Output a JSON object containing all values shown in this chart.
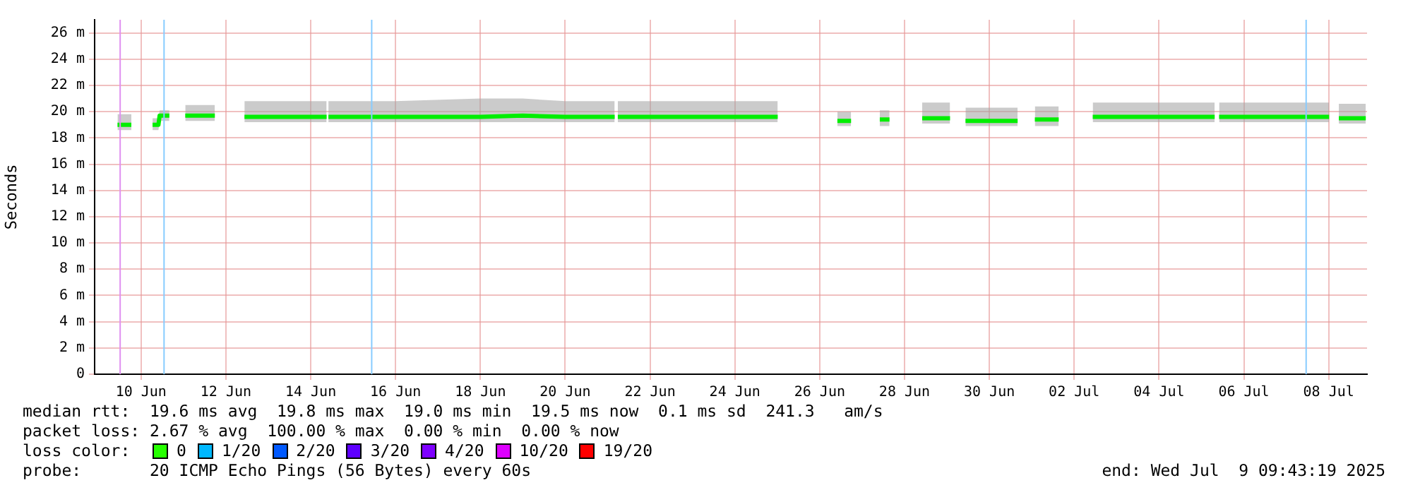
{
  "chart_data": {
    "type": "line",
    "ylabel": "Seconds",
    "xlim": [
      "2025-06-09T09:43",
      "2025-07-09T09:43"
    ],
    "xticks": [
      {
        "value": "2025-06-10T12:00",
        "label": "10 Jun"
      },
      {
        "value": "2025-06-12T12:00",
        "label": "12 Jun"
      },
      {
        "value": "2025-06-14T12:00",
        "label": "14 Jun"
      },
      {
        "value": "2025-06-16T12:00",
        "label": "16 Jun"
      },
      {
        "value": "2025-06-18T12:00",
        "label": "18 Jun"
      },
      {
        "value": "2025-06-20T12:00",
        "label": "20 Jun"
      },
      {
        "value": "2025-06-22T12:00",
        "label": "22 Jun"
      },
      {
        "value": "2025-06-24T12:00",
        "label": "24 Jun"
      },
      {
        "value": "2025-06-26T12:00",
        "label": "26 Jun"
      },
      {
        "value": "2025-06-28T12:00",
        "label": "28 Jun"
      },
      {
        "value": "2025-06-30T12:00",
        "label": "30 Jun"
      },
      {
        "value": "2025-07-02T12:00",
        "label": "02 Jul"
      },
      {
        "value": "2025-07-04T12:00",
        "label": "04 Jul"
      },
      {
        "value": "2025-07-06T12:00",
        "label": "06 Jul"
      },
      {
        "value": "2025-07-08T12:00",
        "label": "08 Jul"
      }
    ],
    "ylim": [
      0,
      27
    ],
    "yticks": [
      0,
      {
        "value": 2,
        "label": "2 m"
      },
      {
        "value": 4,
        "label": "4 m"
      },
      {
        "value": 6,
        "label": "6 m"
      },
      {
        "value": 8,
        "label": "8 m"
      },
      {
        "value": 10,
        "label": "10 m"
      },
      {
        "value": 12,
        "label": "12 m"
      },
      {
        "value": 14,
        "label": "14 m"
      },
      {
        "value": 16,
        "label": "16 m"
      },
      {
        "value": 18,
        "label": "18 m"
      },
      {
        "value": 20,
        "label": "20 m"
      },
      {
        "value": 22,
        "label": "22 m"
      },
      {
        "value": 24,
        "label": "24 m"
      },
      {
        "value": 26,
        "label": "26 m"
      }
    ],
    "grid": true,
    "legend": false,
    "marker": "none",
    "line_style": "solid",
    "series": [
      {
        "color": "#00ee00",
        "x": [
          "2025-06-09T22:40",
          "2025-06-10T06:30",
          "2025-06-10T12:00",
          "2025-06-10T18:30",
          "2025-06-10T21:50",
          "2025-06-10T22:30",
          "2025-06-11T04:00",
          "2025-06-11T08:00",
          "2025-06-11T13:00",
          "2025-06-12T05:45",
          "2025-06-12T14:00",
          "2025-06-12T22:30",
          "2025-06-13T22:00",
          "2025-06-14T21:00",
          "2025-06-14T21:30",
          "2025-06-14T22:00",
          "2025-06-16T12:00",
          "2025-06-18T12:00",
          "2025-06-19T12:00",
          "2025-06-20T12:00",
          "2025-06-21T16:00",
          "2025-06-21T17:00",
          "2025-06-21T17:45",
          "2025-06-22T20:00",
          "2025-06-23T22:00",
          "2025-06-24T12:00",
          "2025-06-25T12:15",
          "2025-06-26T00:00",
          "2025-06-26T22:00",
          "2025-06-27T05:45",
          "2025-06-27T12:00",
          "2025-06-27T22:00",
          "2025-06-28T03:30",
          "2025-06-28T12:00",
          "2025-06-28T22:00",
          "2025-06-29T13:45",
          "2025-06-29T18:00",
          "2025-06-29T22:30",
          "2025-06-30T12:00",
          "2025-07-01T04:00",
          "2025-07-01T08:00",
          "2025-07-01T13:45",
          "2025-07-02T03:15",
          "2025-07-02T12:00",
          "2025-07-02T22:30",
          "2025-07-04T00:00",
          "2025-07-05T19:30",
          "2025-07-05T20:30",
          "2025-07-05T22:00",
          "2025-07-07T00:00",
          "2025-07-08T12:15",
          "2025-07-08T15:00",
          "2025-07-08T17:45",
          "2025-07-09T09:00"
        ],
        "values": [
          19.0,
          19.0,
          null,
          19.0,
          19.0,
          19.7,
          19.7,
          null,
          19.7,
          19.7,
          null,
          19.6,
          19.6,
          19.6,
          null,
          19.6,
          19.6,
          19.6,
          19.7,
          19.6,
          19.6,
          null,
          19.6,
          19.6,
          19.6,
          19.6,
          19.6,
          null,
          19.3,
          19.3,
          null,
          19.4,
          19.4,
          null,
          19.5,
          19.5,
          null,
          19.3,
          19.3,
          19.3,
          null,
          19.4,
          19.4,
          null,
          19.6,
          19.6,
          19.6,
          null,
          19.6,
          19.6,
          19.6,
          null,
          19.5,
          19.5
        ],
        "lower": [
          18.6,
          18.6,
          null,
          18.6,
          18.6,
          19.3,
          19.3,
          null,
          19.3,
          19.3,
          null,
          19.2,
          19.2,
          19.2,
          null,
          19.2,
          19.2,
          19.2,
          19.2,
          19.2,
          19.2,
          null,
          19.2,
          19.2,
          19.2,
          19.2,
          19.2,
          null,
          18.9,
          18.9,
          null,
          18.9,
          18.9,
          null,
          19.1,
          19.1,
          null,
          18.9,
          18.9,
          18.9,
          null,
          18.9,
          18.9,
          null,
          19.2,
          19.2,
          19.2,
          null,
          19.2,
          19.2,
          19.2,
          null,
          19.1,
          19.1
        ],
        "upper": [
          19.8,
          19.8,
          null,
          19.5,
          19.5,
          20.1,
          20.1,
          null,
          20.5,
          20.5,
          null,
          20.8,
          20.8,
          20.8,
          null,
          20.8,
          20.8,
          21.0,
          21.0,
          20.8,
          20.8,
          null,
          20.8,
          20.8,
          20.8,
          20.8,
          20.8,
          null,
          20.0,
          20.0,
          null,
          20.1,
          20.1,
          null,
          20.7,
          20.7,
          null,
          20.3,
          20.3,
          20.3,
          null,
          20.4,
          20.4,
          null,
          20.7,
          20.7,
          20.7,
          null,
          20.7,
          20.7,
          20.7,
          null,
          20.6,
          20.6
        ]
      }
    ],
    "ref_lines": [
      {
        "axis": "x",
        "value": "2025-06-10T00:10",
        "color": "#e090f0"
      },
      {
        "axis": "x",
        "value": "2025-06-11T01:00",
        "color": "#88ccff"
      },
      {
        "axis": "x",
        "value": "2025-06-15T22:30",
        "color": "#88ccff"
      },
      {
        "axis": "x",
        "value": "2025-07-07T23:15",
        "color": "#88ccff"
      }
    ],
    "annotations": [
      "median rtt:  19.6 ms avg  19.8 ms max  19.0 ms min  19.5 ms now  0.1 ms sd  241.3   am/s",
      "packet loss: 2.67 % avg  100.00 % max  0.00 % min  0.00 % now",
      "loss color:",
      "0",
      "1/20",
      "2/20",
      "3/20",
      "4/20",
      "10/20",
      "19/20",
      "probe:       20 ICMP Echo Pings (56 Bytes) every 60s",
      "end: Wed Jul  9 09:43:19 2025"
    ]
  }
}
